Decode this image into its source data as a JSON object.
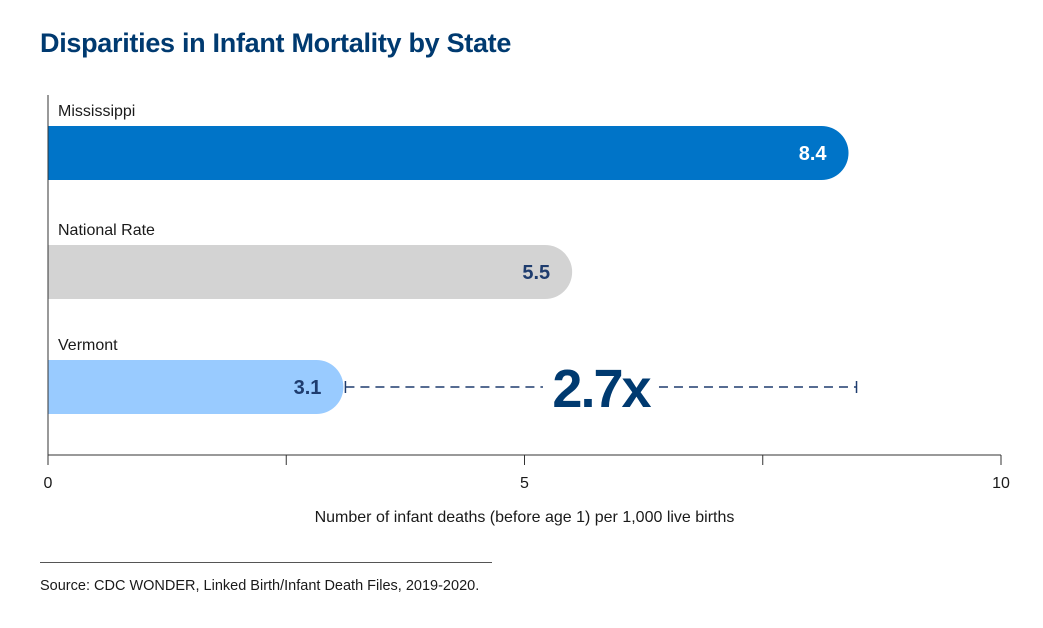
{
  "title": "Disparities in Infant Mortality by State",
  "source": "Source: CDC WONDER, Linked Birth/Infant Death Files, 2019-2020.",
  "colors": {
    "title": "#003a70",
    "mississippi": "#0074c8",
    "national": "#d3d3d3",
    "vermont": "#99cbff",
    "dark_label": "#1e3c6e",
    "light_label": "#ffffff"
  },
  "chart_data": {
    "type": "bar",
    "orientation": "horizontal",
    "categories": [
      "Mississippi",
      "National Rate",
      "Vermont"
    ],
    "values": [
      8.4,
      5.5,
      3.1
    ],
    "value_labels": [
      "8.4",
      "5.5",
      "3.1"
    ],
    "xlabel": "Number of infant deaths (before age 1) per 1,000 live births",
    "ylabel": "",
    "xlim": [
      0,
      10
    ],
    "xticks": [
      0,
      2.5,
      5,
      7.5,
      10
    ],
    "xtick_labels": [
      "0",
      "",
      "5",
      "",
      "10"
    ],
    "grid": false,
    "annotation": {
      "text": "2.7x",
      "from_value": 3.1,
      "to_value": 8.4,
      "row": "Vermont"
    }
  }
}
